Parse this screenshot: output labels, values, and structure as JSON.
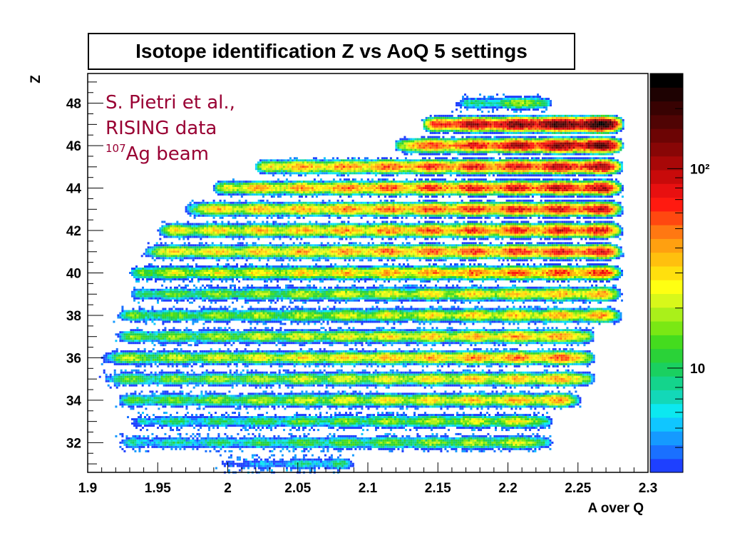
{
  "chart_data": {
    "type": "heatmap",
    "title": "Isotope identification Z vs AoQ 5 settings",
    "xlabel": "A over Q",
    "ylabel": "Z",
    "xlim": [
      1.9,
      2.3
    ],
    "ylim": [
      30.6,
      49.4
    ],
    "x_ticks": [
      "1.9",
      "1.95",
      "2",
      "2.05",
      "2.1",
      "2.15",
      "2.2",
      "2.25",
      "2.3"
    ],
    "y_ticks": [
      "32",
      "34",
      "36",
      "38",
      "40",
      "42",
      "44",
      "46",
      "48"
    ],
    "log_color_scale": true,
    "colorbar_ticks": [
      "10",
      "10²"
    ],
    "colorbar_tick_values": [
      10,
      100
    ],
    "colorbar_range": [
      3,
      300
    ],
    "palette": [
      "#1e40ff",
      "#1a70ff",
      "#159aff",
      "#10c6ff",
      "#0ce8f0",
      "#13d8b8",
      "#14d48c",
      "#1ad060",
      "#2ad238",
      "#44dc1e",
      "#7ae814",
      "#aaf01a",
      "#d8f81a",
      "#ffff12",
      "#ffe00e",
      "#ffc00e",
      "#ffa010",
      "#ff7812",
      "#ff4810",
      "#ff1a10",
      "#e81010",
      "#c80a0a",
      "#a80808",
      "#880606",
      "#6c0404",
      "#500404",
      "#380202",
      "#1e0202",
      "#000000"
    ],
    "annotation": {
      "line1": "S. Pietri et al.,",
      "line2": "RISING data",
      "mass": "107",
      "line3": "Ag beam"
    },
    "bands": [
      {
        "z": 31,
        "range": [
          2.0,
          2.08
        ],
        "peak": 12
      },
      {
        "z": 32,
        "range": [
          1.93,
          2.22
        ],
        "peak": 25
      },
      {
        "z": 33,
        "range": [
          1.94,
          2.22
        ],
        "peak": 28
      },
      {
        "z": 34,
        "range": [
          1.93,
          2.24
        ],
        "peak": 45
      },
      {
        "z": 35,
        "range": [
          1.92,
          2.25
        ],
        "peak": 45
      },
      {
        "z": 36,
        "range": [
          1.92,
          2.25
        ],
        "peak": 60
      },
      {
        "z": 37,
        "range": [
          1.93,
          2.25
        ],
        "peak": 50
      },
      {
        "z": 38,
        "range": [
          1.93,
          2.27
        ],
        "peak": 45
      },
      {
        "z": 39,
        "range": [
          1.94,
          2.27
        ],
        "peak": 45
      },
      {
        "z": 40,
        "range": [
          1.94,
          2.27
        ],
        "peak": 70
      },
      {
        "z": 41,
        "range": [
          1.95,
          2.27
        ],
        "peak": 90
      },
      {
        "z": 42,
        "range": [
          1.96,
          2.27
        ],
        "peak": 90
      },
      {
        "z": 43,
        "range": [
          1.98,
          2.27
        ],
        "peak": 100
      },
      {
        "z": 44,
        "range": [
          2.0,
          2.27
        ],
        "peak": 110
      },
      {
        "z": 45,
        "range": [
          2.03,
          2.27
        ],
        "peak": 120
      },
      {
        "z": 46,
        "range": [
          2.13,
          2.27
        ],
        "peak": 180
      },
      {
        "z": 47,
        "range": [
          2.15,
          2.27
        ],
        "peak": 280
      },
      {
        "z": 48,
        "range": [
          2.17,
          2.22
        ],
        "peak": 25
      }
    ]
  }
}
